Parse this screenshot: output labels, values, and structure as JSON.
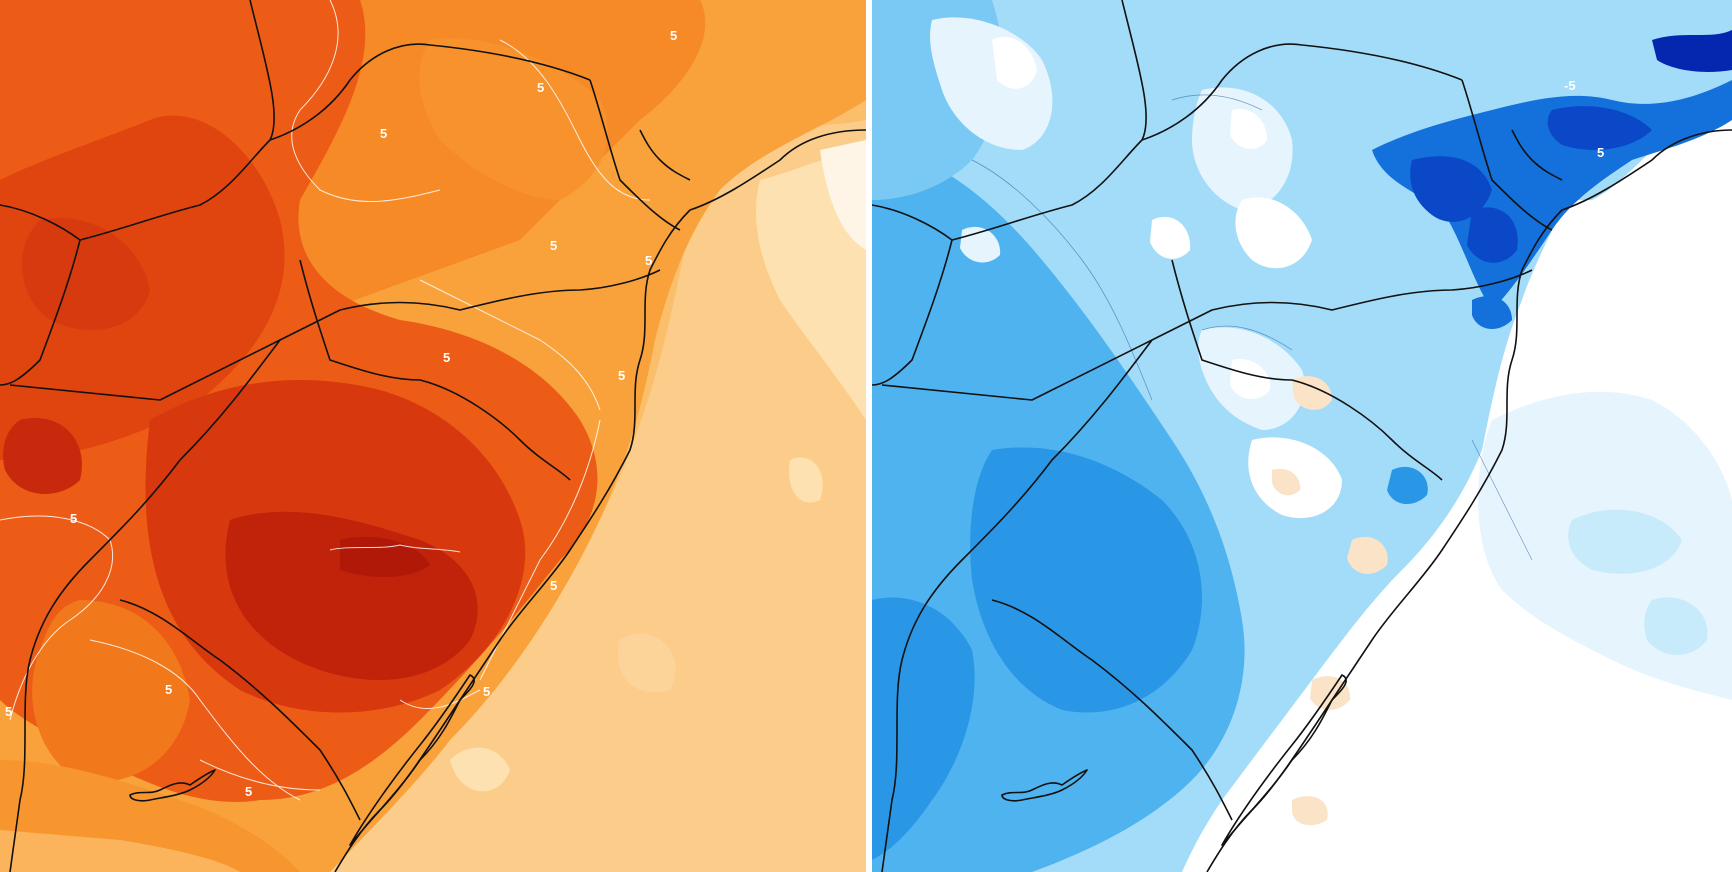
{
  "panels": [
    {
      "id": "left",
      "theme": "warm anomaly",
      "palette": [
        "#fde3b4",
        "#fccf8a",
        "#fbb45c",
        "#f99a34",
        "#f47a1c",
        "#ec5a14",
        "#e0400f",
        "#cc2a0c",
        "#b41908"
      ],
      "contour_labels": [
        "5",
        "5",
        "5",
        "5",
        "5",
        "5",
        "5",
        "5",
        "5",
        "5",
        "5",
        "5"
      ]
    },
    {
      "id": "right",
      "theme": "cool anomaly",
      "palette": [
        "#ffffff",
        "#e6f5fd",
        "#c8ebfb",
        "#a3dcf8",
        "#79c9f4",
        "#4fb3ef",
        "#2a96e6",
        "#1470da",
        "#0a48c8",
        "#0527b0"
      ],
      "contour_labels": [
        "-5",
        "5"
      ]
    }
  ],
  "map": {
    "border_color": "#111111",
    "contour_line_color": "#ffffff"
  }
}
